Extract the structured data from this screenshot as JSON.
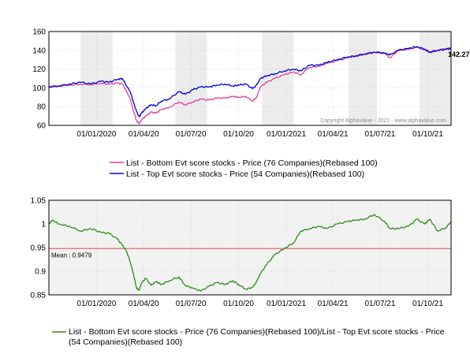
{
  "chart_data": [
    {
      "type": "line",
      "copyright": "Copyright Alphavalue - 2021 - www.alphavalue.com",
      "x_tick_labels": [
        "01/01/2020",
        "01/04/20",
        "01/07/20",
        "01/10/20",
        "01/01/2021",
        "01/04/21",
        "01/07/21",
        "01/10/21"
      ],
      "x_tick_dates": [
        "2020-01-01",
        "2020-04-01",
        "2020-07-01",
        "2020-10-01",
        "2021-01-01",
        "2021-04-01",
        "2021-07-01",
        "2021-10-01"
      ],
      "x_range": [
        "2019-10-01",
        "2021-11-15"
      ],
      "shaded_bands": [
        [
          "2019-12-01",
          "2020-02-01"
        ],
        [
          "2020-06-01",
          "2020-08-01"
        ],
        [
          "2020-11-15",
          "2021-01-15"
        ],
        [
          "2021-05-01",
          "2021-06-25"
        ],
        [
          "2021-09-15",
          "2021-11-15"
        ]
      ],
      "ylim": [
        60,
        160
      ],
      "y_ticks": [
        60,
        80,
        100,
        120,
        140,
        160
      ],
      "grid": true,
      "end_label": "142.27",
      "series": [
        {
          "name": "List - Bottom Evt score stocks - Price (76 Companies)(Rebased 100)",
          "color": "#e0409a",
          "points": [
            [
              "2019-10-01",
              101
            ],
            [
              "2019-10-20",
              102
            ],
            [
              "2019-11-10",
              103
            ],
            [
              "2019-12-01",
              104
            ],
            [
              "2019-12-20",
              103.5
            ],
            [
              "2020-01-10",
              105
            ],
            [
              "2020-01-25",
              104
            ],
            [
              "2020-02-10",
              105
            ],
            [
              "2020-02-20",
              104
            ],
            [
              "2020-02-28",
              96
            ],
            [
              "2020-03-06",
              88
            ],
            [
              "2020-03-12",
              76
            ],
            [
              "2020-03-18",
              65
            ],
            [
              "2020-03-23",
              62
            ],
            [
              "2020-03-28",
              66
            ],
            [
              "2020-04-05",
              70
            ],
            [
              "2020-04-15",
              74
            ],
            [
              "2020-04-25",
              73
            ],
            [
              "2020-05-05",
              77
            ],
            [
              "2020-05-20",
              79
            ],
            [
              "2020-06-08",
              85
            ],
            [
              "2020-06-20",
              82
            ],
            [
              "2020-07-05",
              85
            ],
            [
              "2020-07-20",
              88
            ],
            [
              "2020-08-05",
              87
            ],
            [
              "2020-08-20",
              89
            ],
            [
              "2020-09-05",
              89
            ],
            [
              "2020-09-20",
              91
            ],
            [
              "2020-10-01",
              90
            ],
            [
              "2020-10-15",
              91
            ],
            [
              "2020-10-28",
              86
            ],
            [
              "2020-11-05",
              90
            ],
            [
              "2020-11-12",
              101
            ],
            [
              "2020-11-25",
              106
            ],
            [
              "2020-12-10",
              110
            ],
            [
              "2020-12-28",
              114
            ],
            [
              "2021-01-15",
              117
            ],
            [
              "2021-01-29",
              114
            ],
            [
              "2021-02-15",
              122
            ],
            [
              "2021-03-05",
              123
            ],
            [
              "2021-03-20",
              126
            ],
            [
              "2021-04-10",
              129
            ],
            [
              "2021-04-30",
              132
            ],
            [
              "2021-05-15",
              134
            ],
            [
              "2021-06-01",
              136
            ],
            [
              "2021-06-20",
              138
            ],
            [
              "2021-07-10",
              137
            ],
            [
              "2021-07-20",
              132
            ],
            [
              "2021-08-05",
              140
            ],
            [
              "2021-08-25",
              141
            ],
            [
              "2021-09-10",
              143
            ],
            [
              "2021-09-25",
              141
            ],
            [
              "2021-10-05",
              138
            ],
            [
              "2021-10-20",
              140
            ],
            [
              "2021-11-05",
              142
            ],
            [
              "2021-11-15",
              142
            ]
          ]
        },
        {
          "name": "List - Top Evt score stocks - Price (54 Companies)(Rebased 100)",
          "color": "#0000dd",
          "points": [
            [
              "2019-10-01",
              101
            ],
            [
              "2019-10-20",
              102
            ],
            [
              "2019-11-10",
              104
            ],
            [
              "2019-12-01",
              106
            ],
            [
              "2019-12-20",
              104
            ],
            [
              "2020-01-10",
              107
            ],
            [
              "2020-01-25",
              106
            ],
            [
              "2020-02-10",
              109
            ],
            [
              "2020-02-20",
              110
            ],
            [
              "2020-02-28",
              102
            ],
            [
              "2020-03-06",
              96
            ],
            [
              "2020-03-12",
              85
            ],
            [
              "2020-03-18",
              75
            ],
            [
              "2020-03-23",
              69
            ],
            [
              "2020-03-28",
              73
            ],
            [
              "2020-04-05",
              78
            ],
            [
              "2020-04-15",
              82
            ],
            [
              "2020-04-25",
              81
            ],
            [
              "2020-05-05",
              86
            ],
            [
              "2020-05-20",
              88
            ],
            [
              "2020-06-08",
              96
            ],
            [
              "2020-06-20",
              93
            ],
            [
              "2020-07-05",
              98
            ],
            [
              "2020-07-20",
              101
            ],
            [
              "2020-08-05",
              101
            ],
            [
              "2020-08-20",
              103
            ],
            [
              "2020-09-05",
              104
            ],
            [
              "2020-09-20",
              102
            ],
            [
              "2020-10-01",
              103
            ],
            [
              "2020-10-15",
              104
            ],
            [
              "2020-10-28",
              99
            ],
            [
              "2020-11-05",
              103
            ],
            [
              "2020-11-12",
              110
            ],
            [
              "2020-11-25",
              113
            ],
            [
              "2020-12-10",
              115
            ],
            [
              "2020-12-28",
              118
            ],
            [
              "2021-01-15",
              120
            ],
            [
              "2021-01-29",
              118
            ],
            [
              "2021-02-15",
              124
            ],
            [
              "2021-03-05",
              124
            ],
            [
              "2021-03-20",
              127
            ],
            [
              "2021-04-10",
              130
            ],
            [
              "2021-04-30",
              133
            ],
            [
              "2021-05-15",
              134
            ],
            [
              "2021-06-01",
              136
            ],
            [
              "2021-06-20",
              138
            ],
            [
              "2021-07-10",
              137
            ],
            [
              "2021-07-20",
              135
            ],
            [
              "2021-08-05",
              140
            ],
            [
              "2021-08-25",
              142
            ],
            [
              "2021-09-10",
              144
            ],
            [
              "2021-09-25",
              141
            ],
            [
              "2021-10-05",
              138
            ],
            [
              "2021-10-20",
              140
            ],
            [
              "2021-11-05",
              141
            ],
            [
              "2021-11-15",
              142
            ]
          ]
        }
      ]
    },
    {
      "type": "line",
      "x_tick_labels": [
        "01/01/2020",
        "01/04/20",
        "01/07/20",
        "01/10/20",
        "01/01/2021",
        "01/04/21",
        "01/07/21",
        "01/10/21"
      ],
      "x_tick_dates": [
        "2020-01-01",
        "2020-04-01",
        "2020-07-01",
        "2020-10-01",
        "2021-01-01",
        "2021-04-01",
        "2021-07-01",
        "2021-10-01"
      ],
      "x_range": [
        "2019-10-01",
        "2021-11-15"
      ],
      "ylim": [
        0.85,
        1.05
      ],
      "y_tick_labels": [
        "0.85",
        "0.9",
        "0.95",
        "1",
        "1.05"
      ],
      "y_ticks": [
        0.85,
        0.9,
        0.95,
        1.0,
        1.05
      ],
      "grid": true,
      "mean": 0.9479,
      "mean_label": "Mean : 0.9479",
      "mean_color": "#e05050",
      "series": [
        {
          "name": "List - Bottom Evt score stocks - Price (76 Companies)(Rebased 100)/List - Top Evt score stocks - Price (54 Companies)(Rebased 100)",
          "color": "#2e8b1e",
          "points": [
            [
              "2019-10-01",
              1.0
            ],
            [
              "2019-10-08",
              1.008
            ],
            [
              "2019-10-20",
              1.0
            ],
            [
              "2019-11-10",
              0.995
            ],
            [
              "2019-12-01",
              0.985
            ],
            [
              "2019-12-20",
              0.99
            ],
            [
              "2020-01-10",
              0.982
            ],
            [
              "2020-01-25",
              0.98
            ],
            [
              "2020-02-10",
              0.968
            ],
            [
              "2020-02-20",
              0.955
            ],
            [
              "2020-02-28",
              0.942
            ],
            [
              "2020-03-06",
              0.92
            ],
            [
              "2020-03-12",
              0.895
            ],
            [
              "2020-03-18",
              0.865
            ],
            [
              "2020-03-23",
              0.86
            ],
            [
              "2020-03-28",
              0.875
            ],
            [
              "2020-04-05",
              0.885
            ],
            [
              "2020-04-15",
              0.87
            ],
            [
              "2020-04-25",
              0.878
            ],
            [
              "2020-05-05",
              0.872
            ],
            [
              "2020-05-20",
              0.88
            ],
            [
              "2020-06-08",
              0.888
            ],
            [
              "2020-06-20",
              0.87
            ],
            [
              "2020-07-05",
              0.864
            ],
            [
              "2020-07-20",
              0.858
            ],
            [
              "2020-08-05",
              0.868
            ],
            [
              "2020-08-20",
              0.876
            ],
            [
              "2020-09-05",
              0.872
            ],
            [
              "2020-09-20",
              0.88
            ],
            [
              "2020-10-01",
              0.872
            ],
            [
              "2020-10-15",
              0.862
            ],
            [
              "2020-10-28",
              0.866
            ],
            [
              "2020-11-05",
              0.878
            ],
            [
              "2020-11-12",
              0.895
            ],
            [
              "2020-11-25",
              0.915
            ],
            [
              "2020-12-10",
              0.935
            ],
            [
              "2020-12-28",
              0.948
            ],
            [
              "2021-01-15",
              0.96
            ],
            [
              "2021-01-29",
              0.985
            ],
            [
              "2021-02-15",
              0.99
            ],
            [
              "2021-03-05",
              0.995
            ],
            [
              "2021-03-20",
              0.99
            ],
            [
              "2021-04-10",
              1.0
            ],
            [
              "2021-04-30",
              1.005
            ],
            [
              "2021-05-15",
              1.008
            ],
            [
              "2021-06-01",
              1.01
            ],
            [
              "2021-06-20",
              1.02
            ],
            [
              "2021-07-10",
              1.005
            ],
            [
              "2021-07-20",
              0.99
            ],
            [
              "2021-08-05",
              0.99
            ],
            [
              "2021-08-25",
              0.995
            ],
            [
              "2021-09-10",
              1.01
            ],
            [
              "2021-09-25",
              1.0
            ],
            [
              "2021-10-05",
              1.01
            ],
            [
              "2021-10-20",
              0.985
            ],
            [
              "2021-11-05",
              0.992
            ],
            [
              "2021-11-15",
              1.005
            ]
          ]
        }
      ]
    }
  ]
}
